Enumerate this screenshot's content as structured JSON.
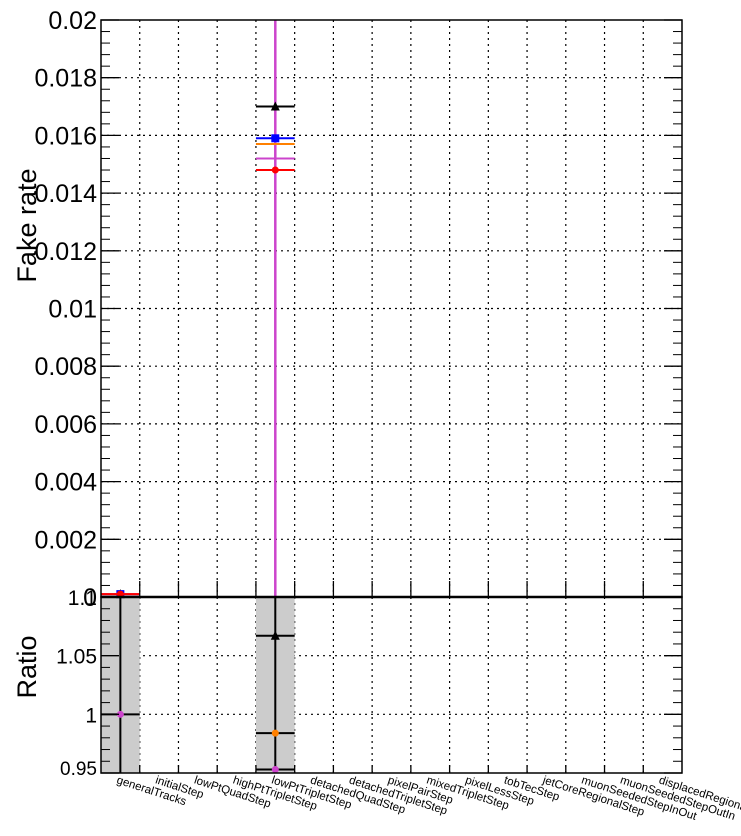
{
  "chart_data": [
    {
      "type": "scatter",
      "panel": "main",
      "title": "",
      "ylabel": "Fake rate",
      "ylim": [
        0,
        0.02
      ],
      "yticks": [
        "0",
        "0.002",
        "0.004",
        "0.006",
        "0.008",
        "0.01",
        "0.012",
        "0.014",
        "0.016",
        "0.018",
        "0.02"
      ],
      "categories": [
        "generalTracks",
        "initialStep",
        "lowPtQuadStep",
        "highPtTripletStep",
        "lowPtTripletStep",
        "detachedQuadStep",
        "detachedTripletStep",
        "pixelPairStep",
        "mixedTripletStep",
        "pixelLessStep",
        "tobTecStep",
        "jetCoreRegionalStep",
        "muonSeededStepInOut",
        "muonSeededStepOutIn",
        "displacedRegionalStep"
      ],
      "grid": true,
      "series": [
        {
          "color": "#000000",
          "marker": "triangle",
          "values": [
            0.0001,
            null,
            null,
            null,
            0.017,
            null,
            null,
            null,
            null,
            null,
            null,
            null,
            null,
            null,
            null
          ]
        },
        {
          "color": "#0000ff",
          "marker": "square",
          "values": [
            0.0001,
            null,
            null,
            null,
            0.0159,
            null,
            null,
            null,
            null,
            null,
            null,
            null,
            null,
            null,
            null
          ]
        },
        {
          "color": "#ff8000",
          "marker": "none",
          "values": [
            0.0001,
            null,
            null,
            null,
            0.0157,
            null,
            null,
            null,
            null,
            null,
            null,
            null,
            null,
            null,
            null
          ]
        },
        {
          "color": "#cc44cc",
          "marker": "none",
          "values": [
            0.0001,
            null,
            null,
            null,
            0.0152,
            null,
            null,
            null,
            null,
            null,
            null,
            null,
            null,
            null,
            null
          ]
        },
        {
          "color": "#ff0000",
          "marker": "circle",
          "values": [
            0.0001,
            null,
            null,
            null,
            0.0148,
            null,
            null,
            null,
            null,
            null,
            null,
            null,
            null,
            null,
            null
          ]
        }
      ],
      "vertical_error_bar": {
        "category": "lowPtTripletStep",
        "color": "#cc44cc",
        "from": 0,
        "to": 0.02
      }
    },
    {
      "type": "scatter",
      "panel": "ratio",
      "ylabel": "Ratio",
      "ylim": [
        0.95,
        1.1
      ],
      "yticks": [
        "0.95",
        "1",
        "1.05",
        "1.1"
      ],
      "grid": true,
      "bands": [
        {
          "category": "generalTracks",
          "from": 0.95,
          "to": 1.1,
          "color": "#cccccc"
        },
        {
          "category": "lowPtTripletStep",
          "from": 0.95,
          "to": 1.1,
          "color": "#cccccc"
        }
      ],
      "points": [
        {
          "category": "generalTracks",
          "value": 1.0,
          "color": "#cc44cc",
          "marker": "circle",
          "err_low": 0.95,
          "err_high": 1.1
        },
        {
          "category": "lowPtTripletStep",
          "value": 1.067,
          "color": "#000000",
          "marker": "triangle",
          "err_low": 0.95,
          "err_high": 1.1
        },
        {
          "category": "lowPtTripletStep",
          "value": 0.984,
          "color": "#ff8000",
          "marker": "circle",
          "err_low": null,
          "err_high": null
        },
        {
          "category": "lowPtTripletStep",
          "value": 0.953,
          "color": "#cc44cc",
          "marker": "circle",
          "err_low": null,
          "err_high": null
        }
      ]
    }
  ]
}
